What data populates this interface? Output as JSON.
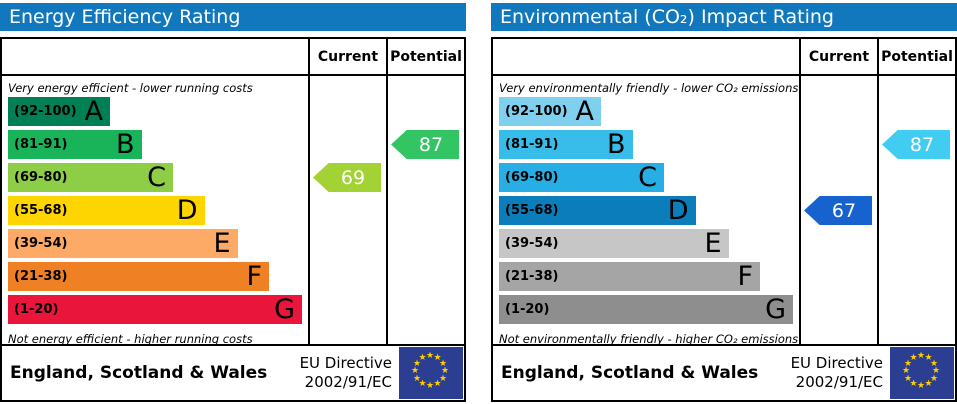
{
  "icons": {
    "star": "★"
  },
  "colors": {
    "header_bar": "#1278bd",
    "eu_flag_bg": "#2b3e92",
    "eu_star": "#ffcc00",
    "border": "#000000"
  },
  "charts": [
    {
      "title": "Energy Efficiency Rating",
      "title_bg": "#1278bd",
      "columns": {
        "current": "Current",
        "potential": "Potential"
      },
      "top_note": "Very energy efficient - lower running costs",
      "bottom_note": "Not energy efficient - higher running costs",
      "bands": [
        {
          "range": "(92-100)",
          "letter": "A",
          "color": "#008054",
          "width": "34%"
        },
        {
          "range": "(81-91)",
          "letter": "B",
          "color": "#19b459",
          "width": "44.5%"
        },
        {
          "range": "(69-80)",
          "letter": "C",
          "color": "#8dce46",
          "width": "55%"
        },
        {
          "range": "(55-68)",
          "letter": "D",
          "color": "#ffd500",
          "width": "65.5%"
        },
        {
          "range": "(39-54)",
          "letter": "E",
          "color": "#fcaa65",
          "width": "76.5%"
        },
        {
          "range": "(21-38)",
          "letter": "F",
          "color": "#ef8023",
          "width": "87%"
        },
        {
          "range": "(1-20)",
          "letter": "G",
          "color": "#e9153b",
          "width": "98%"
        }
      ],
      "current": {
        "value": "69",
        "band_index": 2,
        "color": "#a2d234"
      },
      "potential": {
        "value": "87",
        "band_index": 1,
        "color": "#33c564"
      },
      "footer": {
        "region": "England, Scotland & Wales",
        "directive": [
          "EU Directive",
          "2002/91/EC"
        ]
      }
    },
    {
      "title": "Environmental (CO₂) Impact Rating",
      "title_bg": "#1278bd",
      "columns": {
        "current": "Current",
        "potential": "Potential"
      },
      "top_note": "Very environmentally friendly - lower CO₂ emissions",
      "bottom_note": "Not environmentally friendly - higher CO₂ emissions",
      "bands": [
        {
          "range": "(92-100)",
          "letter": "A",
          "color": "#7fd0ef",
          "width": "34%"
        },
        {
          "range": "(81-91)",
          "letter": "B",
          "color": "#38bce9",
          "width": "44.5%"
        },
        {
          "range": "(69-80)",
          "letter": "C",
          "color": "#27aee4",
          "width": "55%"
        },
        {
          "range": "(55-68)",
          "letter": "D",
          "color": "#0b7dbb",
          "width": "65.5%"
        },
        {
          "range": "(39-54)",
          "letter": "E",
          "color": "#c6c6c6",
          "width": "76.5%"
        },
        {
          "range": "(21-38)",
          "letter": "F",
          "color": "#a5a5a5",
          "width": "87%"
        },
        {
          "range": "(1-20)",
          "letter": "G",
          "color": "#8e8e8e",
          "width": "98%"
        }
      ],
      "current": {
        "value": "67",
        "band_index": 3,
        "color": "#1663cf"
      },
      "potential": {
        "value": "87",
        "band_index": 1,
        "color": "#41ccf2"
      },
      "footer": {
        "region": "England, Scotland & Wales",
        "directive": [
          "EU Directive",
          "2002/91/EC"
        ]
      }
    }
  ],
  "chart_data": [
    {
      "type": "bar",
      "title": "Energy Efficiency Rating",
      "categories": [
        "A (92-100)",
        "B (81-91)",
        "C (69-80)",
        "D (55-68)",
        "E (39-54)",
        "F (21-38)",
        "G (1-20)"
      ],
      "series": [
        {
          "name": "Current",
          "values": [
            69
          ],
          "band": "C"
        },
        {
          "name": "Potential",
          "values": [
            87
          ],
          "band": "B"
        }
      ],
      "ylim": [
        1,
        100
      ],
      "annotations": [
        "Very energy efficient - lower running costs",
        "Not energy efficient - higher running costs",
        "England, Scotland & Wales",
        "EU Directive 2002/91/EC"
      ]
    },
    {
      "type": "bar",
      "title": "Environmental (CO₂) Impact Rating",
      "categories": [
        "A (92-100)",
        "B (81-91)",
        "C (69-80)",
        "D (55-68)",
        "E (39-54)",
        "F (21-38)",
        "G (1-20)"
      ],
      "series": [
        {
          "name": "Current",
          "values": [
            67
          ],
          "band": "D"
        },
        {
          "name": "Potential",
          "values": [
            87
          ],
          "band": "B"
        }
      ],
      "ylim": [
        1,
        100
      ],
      "annotations": [
        "Very environmentally friendly - lower CO₂ emissions",
        "Not environmentally friendly - higher CO₂ emissions",
        "England, Scotland & Wales",
        "EU Directive 2002/91/EC"
      ]
    }
  ]
}
